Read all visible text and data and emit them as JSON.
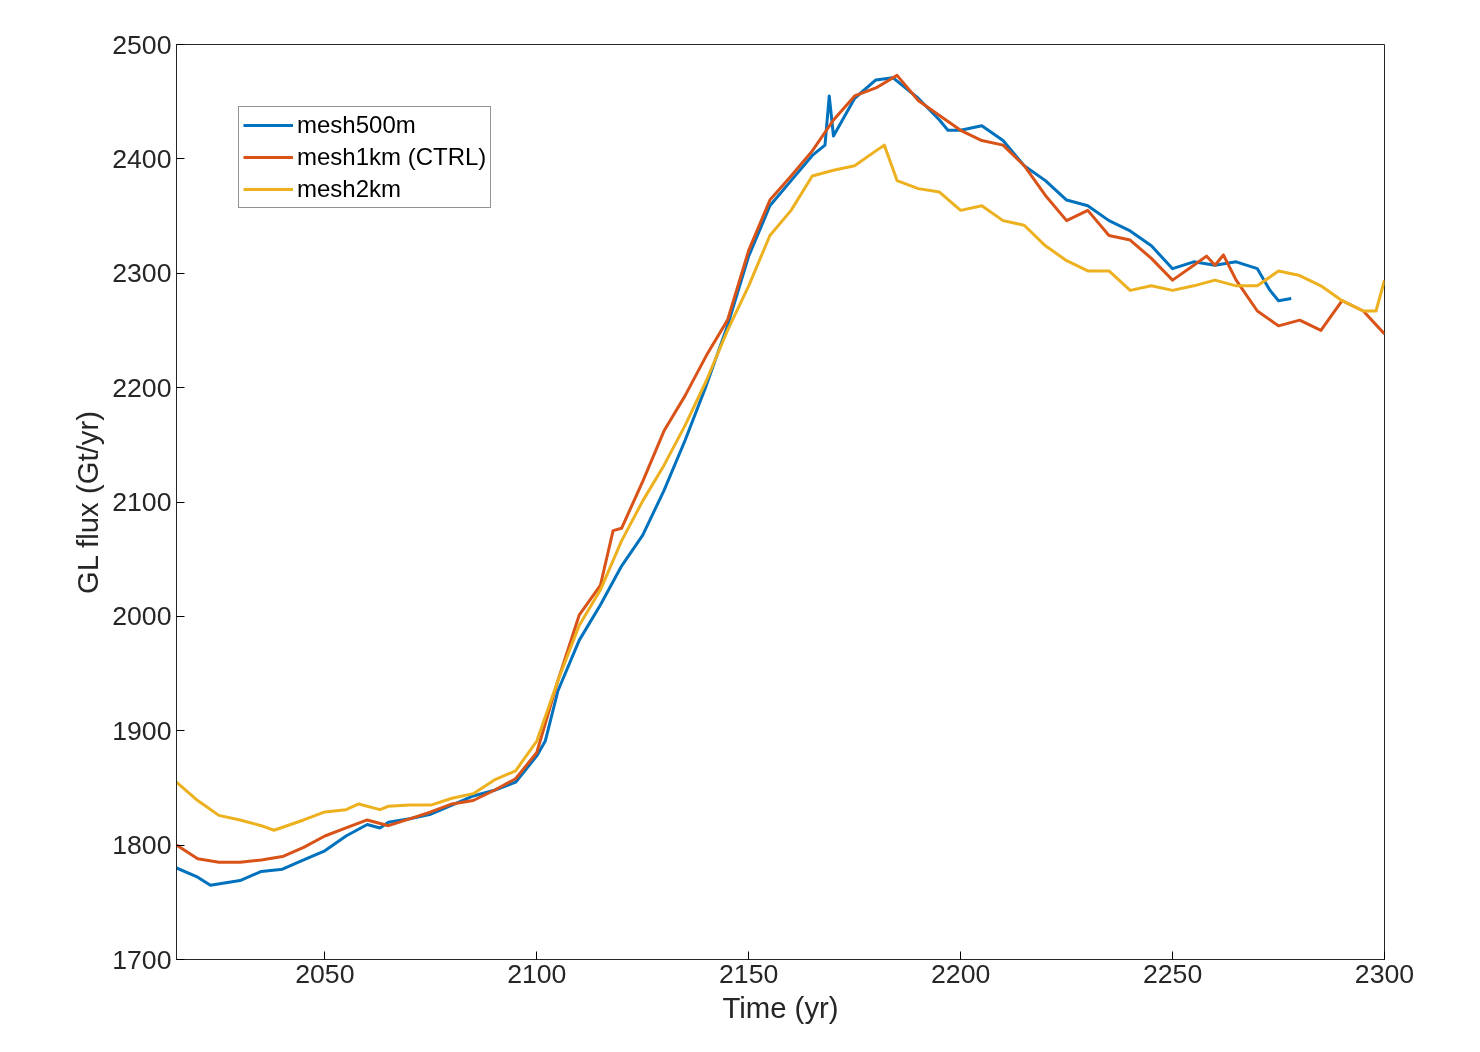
{
  "chart_data": {
    "type": "line",
    "xlabel": "Time (yr)",
    "ylabel": "GL flux (Gt/yr)",
    "xlim": [
      2015,
      2300
    ],
    "xticks": [
      2050,
      2100,
      2150,
      2200,
      2250,
      2300
    ],
    "ylim": [
      1700,
      2500
    ],
    "yticks": [
      1700,
      1800,
      1900,
      2000,
      2100,
      2200,
      2300,
      2400,
      2500
    ],
    "grid": false,
    "legend": "top left",
    "marker": "none",
    "line_style": "solid",
    "series": [
      {
        "name": "mesh500m",
        "color": "#0072bd",
        "x": [
          2015,
          2020,
          2023,
          2030,
          2035,
          2040,
          2045,
          2050,
          2055,
          2060,
          2063,
          2065,
          2070,
          2075,
          2080,
          2085,
          2090,
          2095,
          2100,
          2102,
          2105,
          2110,
          2115,
          2120,
          2125,
          2130,
          2135,
          2140,
          2145,
          2150,
          2155,
          2160,
          2165,
          2168,
          2169,
          2170,
          2175,
          2180,
          2184,
          2190,
          2195,
          2197,
          2200,
          2205,
          2210,
          2215,
          2220,
          2225,
          2230,
          2235,
          2240,
          2245,
          2250,
          2255,
          2260,
          2265,
          2270,
          2273,
          2275,
          2278
        ],
        "values": [
          1780,
          1772,
          1765,
          1769,
          1777,
          1779,
          1787,
          1795,
          1808,
          1818,
          1815,
          1820,
          1823,
          1827,
          1835,
          1843,
          1848,
          1855,
          1878,
          1891,
          1935,
          1979,
          2010,
          2044,
          2071,
          2110,
          2154,
          2202,
          2254,
          2315,
          2359,
          2381,
          2403,
          2412,
          2455,
          2420,
          2453,
          2469,
          2471,
          2453,
          2434,
          2425,
          2425,
          2429,
          2416,
          2394,
          2381,
          2364,
          2359,
          2346,
          2337,
          2324,
          2304,
          2310,
          2307,
          2310,
          2304,
          2285,
          2276,
          2278
        ]
      },
      {
        "name": "mesh1km (CTRL)",
        "color": "#d95319",
        "x": [
          2015,
          2020,
          2025,
          2030,
          2035,
          2040,
          2045,
          2050,
          2055,
          2060,
          2065,
          2070,
          2075,
          2080,
          2085,
          2090,
          2095,
          2100,
          2105,
          2110,
          2115,
          2118,
          2120,
          2125,
          2130,
          2135,
          2140,
          2145,
          2150,
          2155,
          2160,
          2165,
          2170,
          2175,
          2180,
          2185,
          2190,
          2195,
          2200,
          2205,
          2210,
          2215,
          2220,
          2225,
          2230,
          2235,
          2240,
          2245,
          2250,
          2255,
          2258,
          2260,
          2262,
          2265,
          2270,
          2275,
          2280,
          2285,
          2290,
          2295,
          2300
        ],
        "values": [
          1800,
          1788,
          1785,
          1785,
          1787,
          1790,
          1798,
          1808,
          1815,
          1822,
          1817,
          1823,
          1829,
          1836,
          1839,
          1848,
          1858,
          1881,
          1944,
          2001,
          2027,
          2075,
          2077,
          2118,
          2162,
          2193,
          2228,
          2259,
          2320,
          2364,
          2385,
          2407,
          2434,
          2455,
          2462,
          2473,
          2451,
          2438,
          2425,
          2416,
          2412,
          2394,
          2368,
          2346,
          2355,
          2333,
          2329,
          2313,
          2294,
          2307,
          2315,
          2307,
          2316,
          2294,
          2267,
          2254,
          2259,
          2250,
          2276,
          2267,
          2247
        ]
      },
      {
        "name": "mesh2km",
        "color": "#edb120",
        "x": [
          2015,
          2020,
          2025,
          2030,
          2035,
          2038,
          2045,
          2050,
          2055,
          2058,
          2063,
          2065,
          2070,
          2075,
          2080,
          2085,
          2090,
          2095,
          2100,
          2105,
          2110,
          2115,
          2120,
          2125,
          2130,
          2135,
          2140,
          2145,
          2150,
          2155,
          2160,
          2165,
          2170,
          2175,
          2180,
          2182,
          2185,
          2190,
          2195,
          2200,
          2205,
          2210,
          2215,
          2220,
          2225,
          2230,
          2235,
          2240,
          2245,
          2250,
          2255,
          2260,
          2265,
          2270,
          2275,
          2280,
          2285,
          2290,
          2295,
          2298,
          2300
        ],
        "values": [
          1855,
          1839,
          1826,
          1822,
          1817,
          1813,
          1822,
          1829,
          1831,
          1836,
          1831,
          1834,
          1835,
          1835,
          1841,
          1845,
          1857,
          1865,
          1891,
          1944,
          1992,
          2023,
          2066,
          2101,
          2132,
          2167,
          2206,
          2250,
          2289,
          2333,
          2355,
          2385,
          2390,
          2394,
          2407,
          2412,
          2381,
          2374,
          2371,
          2355,
          2359,
          2346,
          2342,
          2324,
          2311,
          2302,
          2302,
          2285,
          2289,
          2285,
          2289,
          2294,
          2289,
          2289,
          2302,
          2298,
          2289,
          2276,
          2267,
          2267,
          2294
        ]
      }
    ]
  }
}
